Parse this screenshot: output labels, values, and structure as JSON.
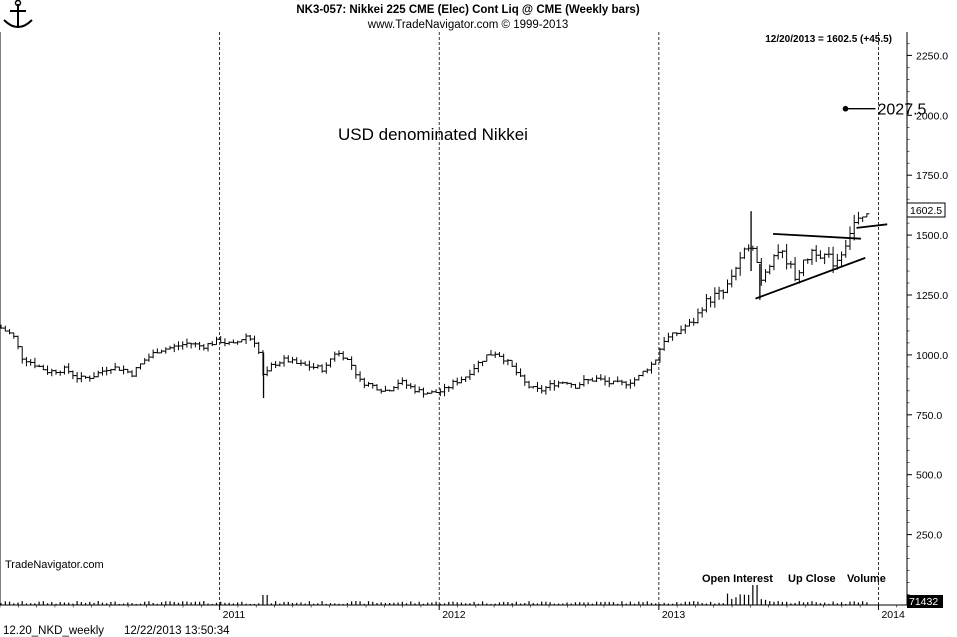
{
  "header": {
    "title": "NK3-057:  Nikkei 225 CME (Elec) Cont Liq @ CME  (Weekly bars)",
    "subtitle": "www.TradeNavigator.com © 1999-2013",
    "last_bar": "12/20/2013 = 1602.5 (+45.5)"
  },
  "annotations": {
    "main": "USD denominated Nikkei",
    "target": "2027.5",
    "price_tag": "1602.5",
    "volume_tag": "71432",
    "watermark": "TradeNavigator.com"
  },
  "footer": {
    "file": "12.20_NKD_weekly",
    "timestamp": "12/22/2013 13:50:34"
  },
  "legend": [
    "Open Interest",
    "Up Close",
    "Volume"
  ],
  "colors": {
    "bars": "#000000",
    "background": "#ffffff",
    "grid": "#000000"
  },
  "chart_data": {
    "type": "ohlc-bar",
    "ylim": [
      0,
      2300
    ],
    "yticks": [
      "250.0",
      "500.0",
      "750.0",
      "1000.0",
      "1250.0",
      "1500.0",
      "1750.0",
      "2000.0",
      "2250.0"
    ],
    "ytick_values": [
      250,
      500,
      750,
      1000,
      1250,
      1500,
      1750,
      2000,
      2250
    ],
    "x_range": [
      2010.0,
      2014.13
    ],
    "xticks": [
      {
        "label": "2011",
        "x": 2011.0
      },
      {
        "label": "2012",
        "x": 2012.0
      },
      {
        "label": "2013",
        "x": 2013.0
      },
      {
        "label": "2014",
        "x": 2014.0
      }
    ],
    "target_point": {
      "x": 2013.85,
      "y": 2027.5
    },
    "price_path": [
      [
        2010.0,
        1115
      ],
      [
        2010.06,
        1080
      ],
      [
        2010.1,
        990
      ],
      [
        2010.16,
        960
      ],
      [
        2010.22,
        930
      ],
      [
        2010.3,
        940
      ],
      [
        2010.36,
        900
      ],
      [
        2010.42,
        910
      ],
      [
        2010.5,
        950
      ],
      [
        2010.56,
        940
      ],
      [
        2010.6,
        920
      ],
      [
        2010.66,
        980
      ],
      [
        2010.72,
        1020
      ],
      [
        2010.78,
        1030
      ],
      [
        2010.86,
        1050
      ],
      [
        2010.92,
        1035
      ],
      [
        2011.0,
        1060
      ],
      [
        2011.06,
        1040
      ],
      [
        2011.12,
        1080
      ],
      [
        2011.17,
        1050
      ],
      [
        2011.2,
        900
      ],
      [
        2011.24,
        960
      ],
      [
        2011.3,
        980
      ],
      [
        2011.36,
        960
      ],
      [
        2011.42,
        950
      ],
      [
        2011.48,
        940
      ],
      [
        2011.52,
        1010
      ],
      [
        2011.56,
        1000
      ],
      [
        2011.6,
        960
      ],
      [
        2011.64,
        890
      ],
      [
        2011.7,
        870
      ],
      [
        2011.76,
        850
      ],
      [
        2011.82,
        890
      ],
      [
        2011.86,
        870
      ],
      [
        2011.9,
        850
      ],
      [
        2011.96,
        840
      ],
      [
        2012.02,
        850
      ],
      [
        2012.06,
        880
      ],
      [
        2012.12,
        910
      ],
      [
        2012.16,
        950
      ],
      [
        2012.22,
        1000
      ],
      [
        2012.26,
        1010
      ],
      [
        2012.3,
        980
      ],
      [
        2012.34,
        940
      ],
      [
        2012.38,
        890
      ],
      [
        2012.42,
        860
      ],
      [
        2012.46,
        850
      ],
      [
        2012.52,
        880
      ],
      [
        2012.58,
        890
      ],
      [
        2012.62,
        870
      ],
      [
        2012.66,
        890
      ],
      [
        2012.72,
        900
      ],
      [
        2012.78,
        880
      ],
      [
        2012.84,
        880
      ],
      [
        2012.9,
        900
      ],
      [
        2012.94,
        940
      ],
      [
        2012.98,
        970
      ],
      [
        2013.02,
        1060
      ],
      [
        2013.08,
        1090
      ],
      [
        2013.12,
        1120
      ],
      [
        2013.16,
        1140
      ],
      [
        2013.2,
        1210
      ],
      [
        2013.26,
        1250
      ],
      [
        2013.3,
        1260
      ],
      [
        2013.34,
        1350
      ],
      [
        2013.38,
        1400
      ],
      [
        2013.4,
        1450
      ],
      [
        2013.42,
        1480
      ],
      [
        2013.44,
        1430
      ],
      [
        2013.46,
        1310
      ],
      [
        2013.5,
        1380
      ],
      [
        2013.54,
        1440
      ],
      [
        2013.58,
        1400
      ],
      [
        2013.62,
        1330
      ],
      [
        2013.66,
        1380
      ],
      [
        2013.7,
        1440
      ],
      [
        2013.74,
        1420
      ],
      [
        2013.78,
        1400
      ],
      [
        2013.8,
        1380
      ],
      [
        2013.84,
        1440
      ],
      [
        2013.88,
        1540
      ],
      [
        2013.9,
        1560
      ],
      [
        2013.93,
        1557
      ],
      [
        2013.96,
        1602
      ]
    ],
    "spikes": [
      {
        "x": 2011.2,
        "low": 820,
        "high": 1010
      },
      {
        "x": 2013.42,
        "low": 1350,
        "high": 1600
      },
      {
        "x": 2013.46,
        "low": 1230,
        "high": 1380
      }
    ],
    "triangle_upper": [
      [
        2013.52,
        1505
      ],
      [
        2013.92,
        1485
      ]
    ],
    "triangle_lower": [
      [
        2013.44,
        1235
      ],
      [
        2013.94,
        1405
      ]
    ],
    "consolidation_segment": [
      [
        2013.9,
        1530
      ],
      [
        2014.04,
        1545
      ]
    ]
  }
}
